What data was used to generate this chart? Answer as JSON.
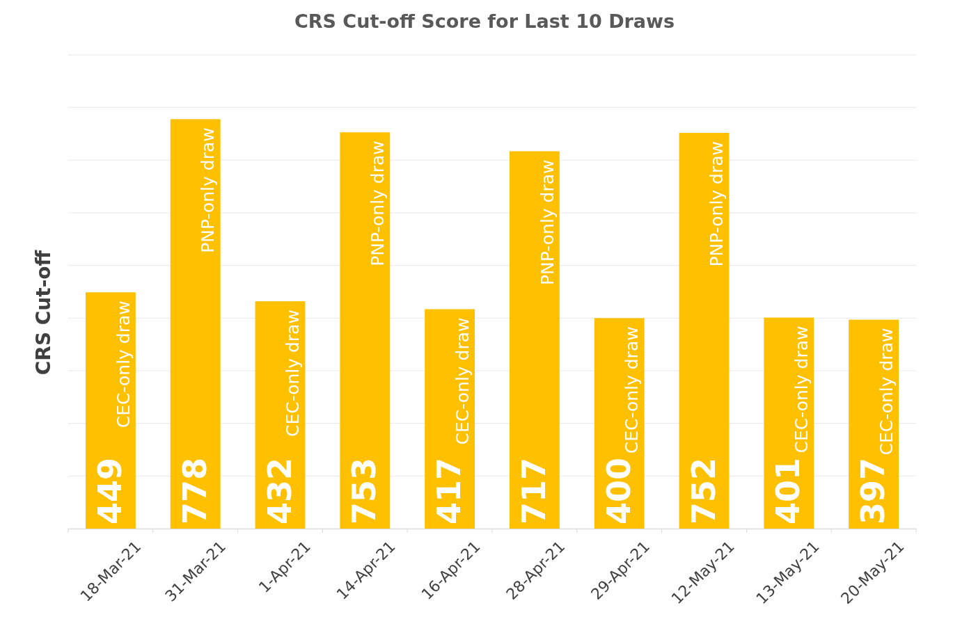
{
  "chart_data": {
    "type": "bar",
    "title": "CRS Cut-off Score for Last 10 Draws",
    "ylabel": "CRS Cut-off",
    "categories": [
      "18-Mar-21",
      "31-Mar-21",
      "1-Apr-21",
      "14-Apr-21",
      "16-Apr-21",
      "28-Apr-21",
      "29-Apr-21",
      "12-May-21",
      "13-May-21",
      "20-May-21"
    ],
    "values": [
      449,
      778,
      432,
      753,
      417,
      717,
      400,
      752,
      401,
      397
    ],
    "color": "#ffc000",
    "data_labels": true,
    "grid": "y",
    "tick_labels": "x",
    "ylim": [
      0,
      900
    ],
    "yticks": [
      {
        "value": 0,
        "label": null
      },
      {
        "value": 100,
        "label": null
      },
      {
        "value": 200,
        "label": null
      },
      {
        "value": 300,
        "label": null
      },
      {
        "value": 400,
        "label": null
      },
      {
        "value": 500,
        "label": null
      },
      {
        "value": 600,
        "label": null
      },
      {
        "value": 700,
        "label": null
      },
      {
        "value": 800,
        "label": null
      },
      {
        "value": 900,
        "label": null
      }
    ],
    "annotations": [
      "CEC-only draw",
      "PNP-only draw",
      "CEC-only draw",
      "PNP-only draw",
      "CEC-only draw",
      "PNP-only draw",
      "CEC-only draw",
      "PNP-only draw",
      "CEC-only draw",
      "CEC-only draw"
    ]
  }
}
